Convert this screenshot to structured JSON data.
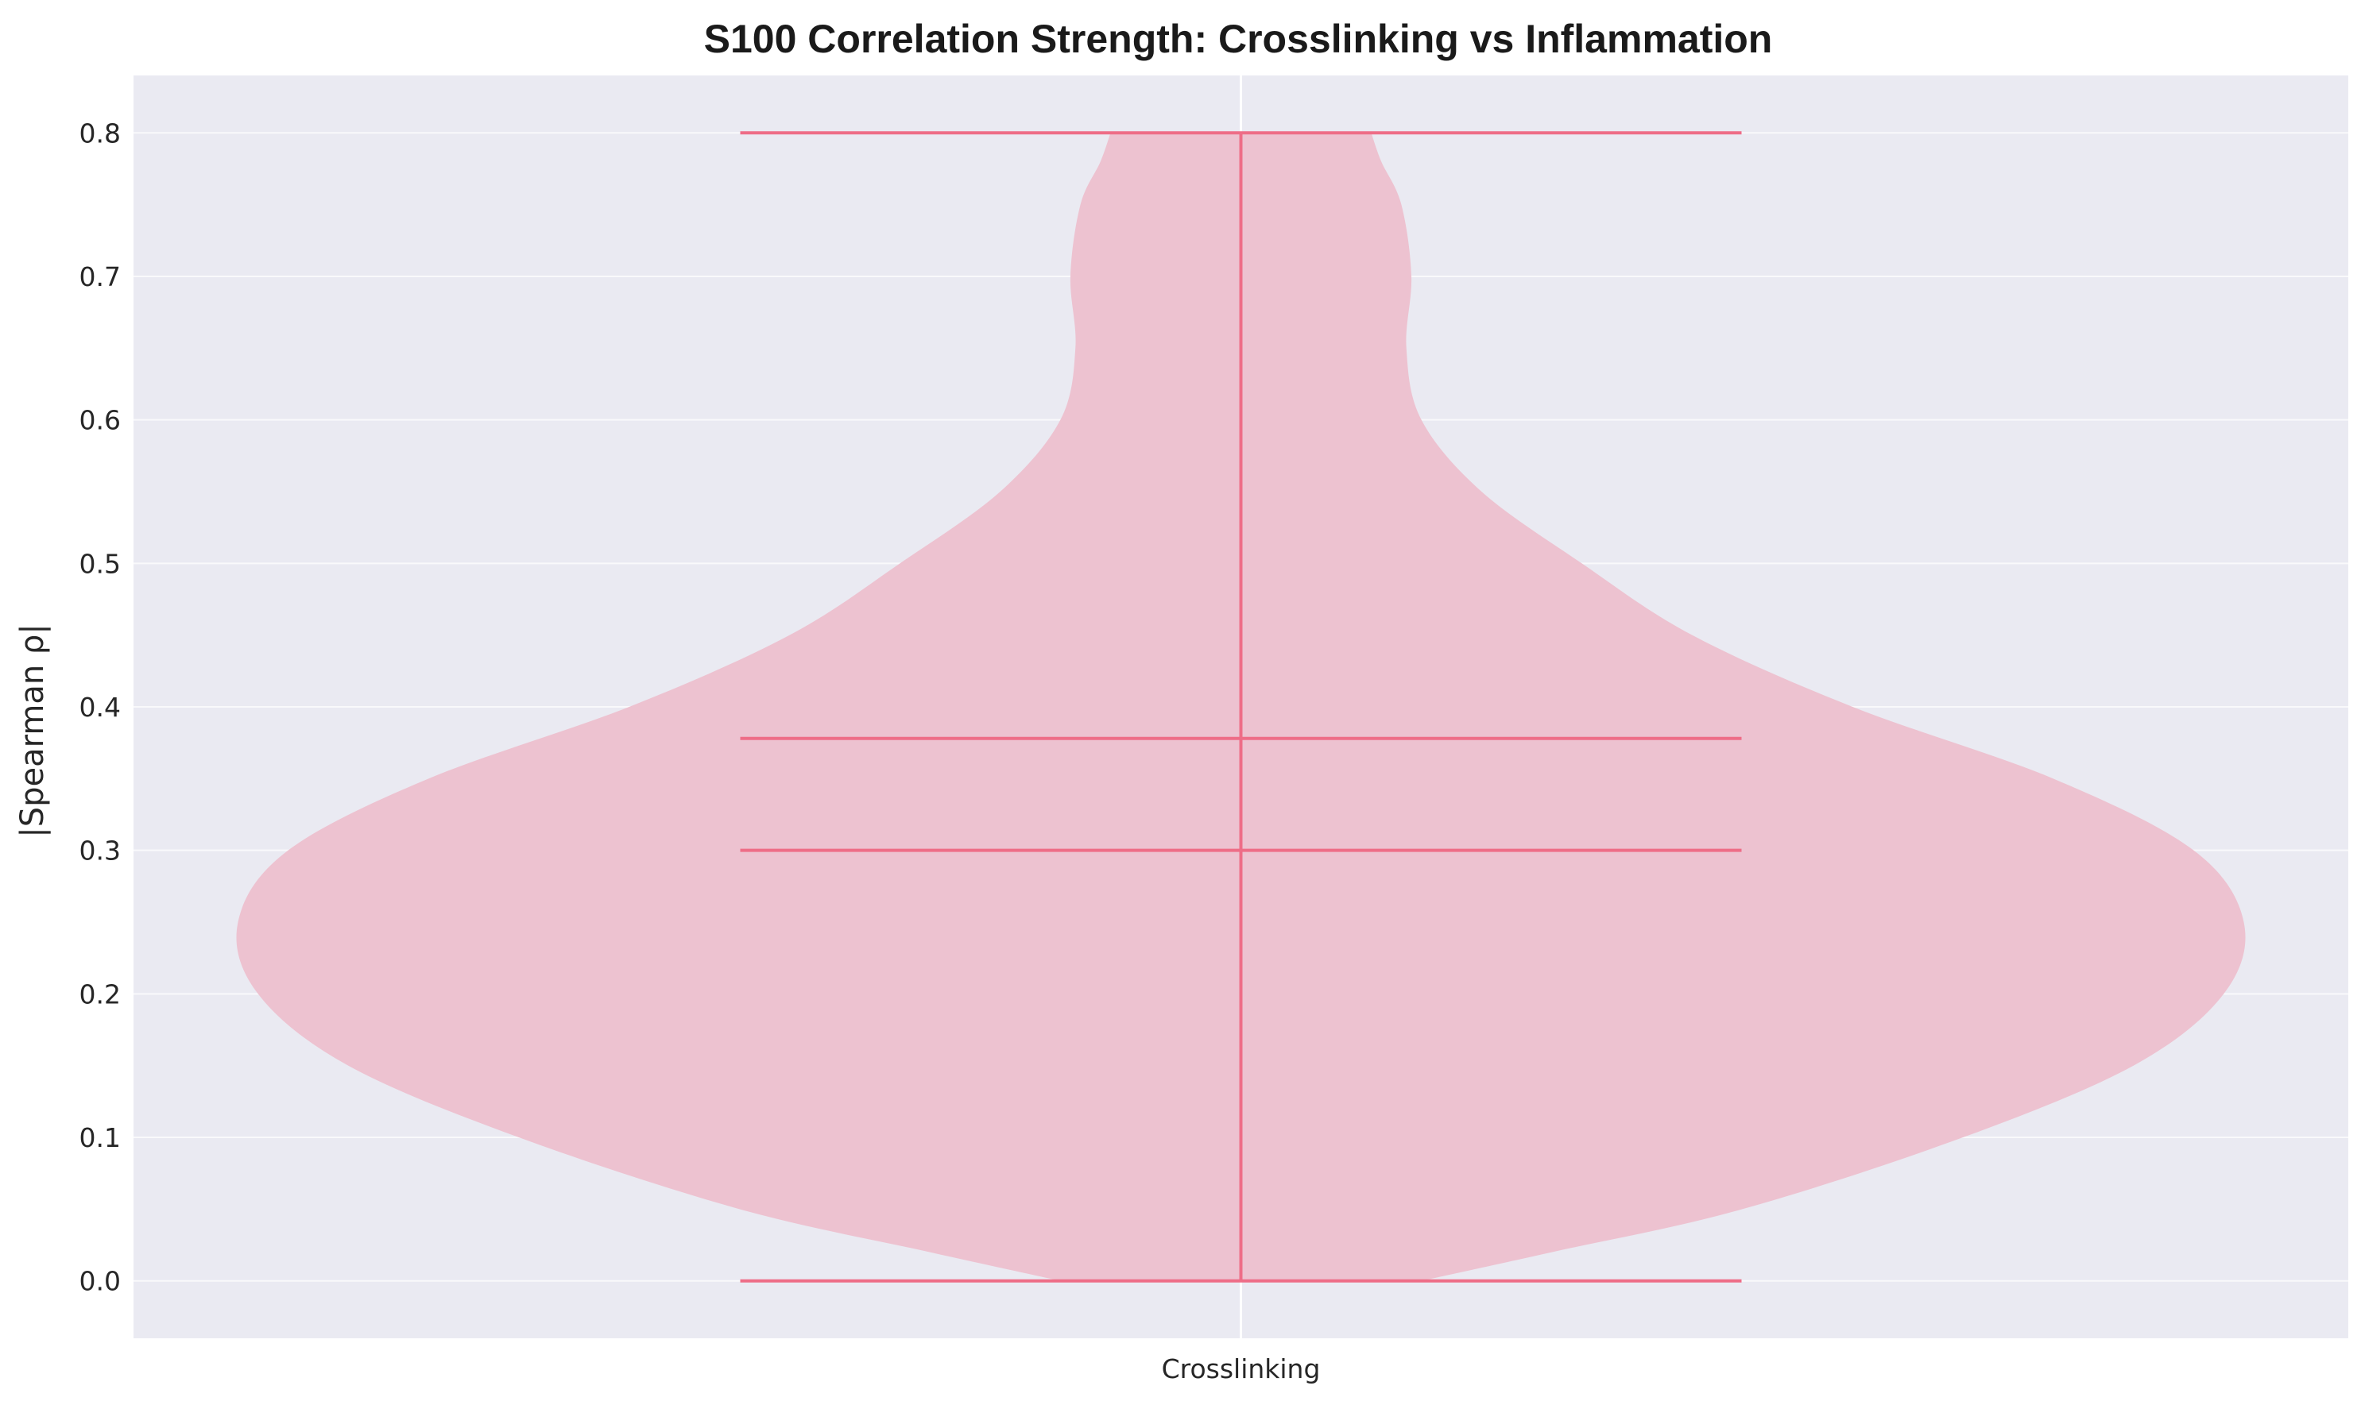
{
  "chart_data": {
    "type": "violin",
    "title": "S100 Correlation Strength: Crosslinking vs Inflammation",
    "xlabel": "",
    "ylabel": "|Spearman ρ|",
    "categories": [
      "Crosslinking"
    ],
    "ylim": [
      -0.04,
      0.84
    ],
    "yticks": [
      0.0,
      0.1,
      0.2,
      0.3,
      0.4,
      0.5,
      0.6,
      0.7,
      0.8
    ],
    "ytick_labels": [
      "0.0",
      "0.1",
      "0.2",
      "0.3",
      "0.4",
      "0.5",
      "0.6",
      "0.7",
      "0.8"
    ],
    "grid": true,
    "series": [
      {
        "category": "Crosslinking",
        "min": 0.0,
        "max": 0.8,
        "mean": 0.378,
        "median": 0.3,
        "density_profile": [
          [
            0.0,
            0.18
          ],
          [
            0.02,
            0.31
          ],
          [
            0.05,
            0.5
          ],
          [
            0.1,
            0.72
          ],
          [
            0.15,
            0.89
          ],
          [
            0.2,
            0.98
          ],
          [
            0.25,
            1.0
          ],
          [
            0.3,
            0.95
          ],
          [
            0.35,
            0.81
          ],
          [
            0.4,
            0.61
          ],
          [
            0.45,
            0.45
          ],
          [
            0.5,
            0.34
          ],
          [
            0.55,
            0.24
          ],
          [
            0.6,
            0.18
          ],
          [
            0.65,
            0.165
          ],
          [
            0.7,
            0.17
          ],
          [
            0.75,
            0.16
          ],
          [
            0.78,
            0.14
          ],
          [
            0.8,
            0.13
          ]
        ]
      }
    ],
    "colors": {
      "background": "#eaeaf2",
      "grid": "#ffffff",
      "violin_fill": "#edc2d0",
      "lines": "#ee6d87"
    }
  }
}
